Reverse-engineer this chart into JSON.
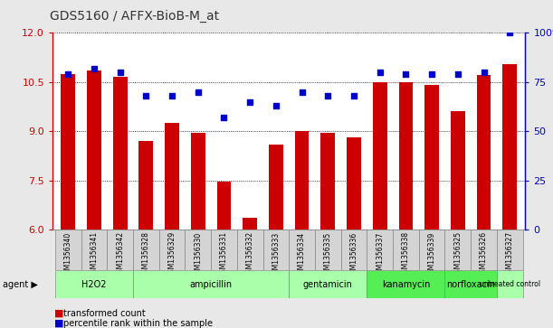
{
  "title": "GDS5160 / AFFX-BioB-M_at",
  "samples": [
    "GSM1356340",
    "GSM1356341",
    "GSM1356342",
    "GSM1356328",
    "GSM1356329",
    "GSM1356330",
    "GSM1356331",
    "GSM1356332",
    "GSM1356333",
    "GSM1356334",
    "GSM1356335",
    "GSM1356336",
    "GSM1356337",
    "GSM1356338",
    "GSM1356339",
    "GSM1356325",
    "GSM1356326",
    "GSM1356327"
  ],
  "transformed_count": [
    10.75,
    10.85,
    10.65,
    8.7,
    9.25,
    8.95,
    7.45,
    6.35,
    8.6,
    9.0,
    8.95,
    8.8,
    10.5,
    10.5,
    10.4,
    9.6,
    10.7,
    11.05
  ],
  "percentile_rank": [
    79,
    82,
    80,
    68,
    68,
    70,
    57,
    65,
    63,
    70,
    68,
    68,
    80,
    79,
    79,
    79,
    80,
    100
  ],
  "groups": [
    {
      "name": "H2O2",
      "start": 0,
      "end": 3,
      "color": "#aaffaa"
    },
    {
      "name": "ampicillin",
      "start": 3,
      "end": 9,
      "color": "#aaffaa"
    },
    {
      "name": "gentamicin",
      "start": 9,
      "end": 12,
      "color": "#aaffaa"
    },
    {
      "name": "kanamycin",
      "start": 12,
      "end": 15,
      "color": "#55ee55"
    },
    {
      "name": "norfloxacin",
      "start": 15,
      "end": 17,
      "color": "#55ee55"
    },
    {
      "name": "untreated control",
      "start": 17,
      "end": 18,
      "color": "#aaffaa"
    }
  ],
  "ylim_left": [
    6,
    12
  ],
  "ylim_right": [
    0,
    100
  ],
  "yticks_left": [
    6,
    7.5,
    9,
    10.5,
    12
  ],
  "yticks_right": [
    0,
    25,
    50,
    75,
    100
  ],
  "bar_color": "#cc0000",
  "dot_color": "#0000cc",
  "bg_color": "#e8e8e8",
  "plot_bg": "#ffffff",
  "title_color": "#333333",
  "group_border_color": "#888888",
  "sample_box_color": "#d4d4d4"
}
